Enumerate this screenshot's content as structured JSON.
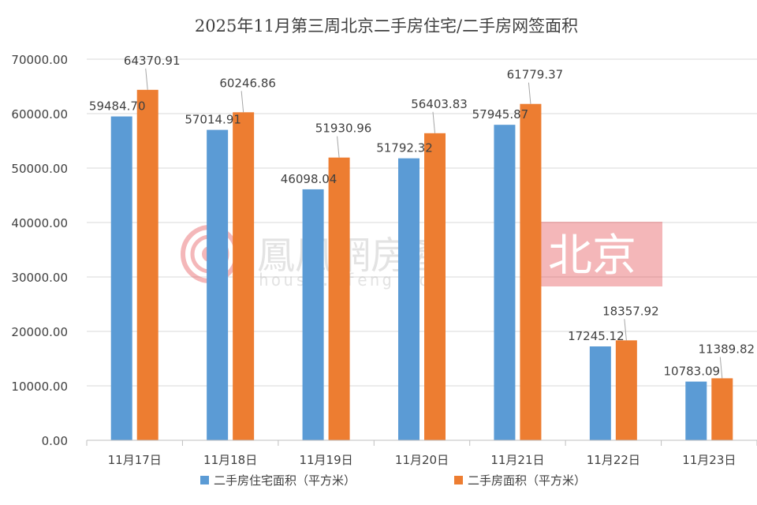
{
  "chart_data": {
    "type": "bar",
    "title": "2025年11月第三周北京二手房住宅/二手房网签面积",
    "categories": [
      "11月17日",
      "11月18日",
      "11月19日",
      "11月20日",
      "11月21日",
      "11月22日",
      "11月23日"
    ],
    "series": [
      {
        "name": "二手房住宅面积（平方米）",
        "color": "#5B9BD5",
        "values": [
          59484.7,
          57014.91,
          46098.04,
          51792.32,
          57945.87,
          17245.12,
          10783.09
        ],
        "labels": [
          "59484.70",
          "57014.91",
          "46098.04",
          "51792.32",
          "57945.87",
          "17245.12",
          "10783.09"
        ]
      },
      {
        "name": "二手房面积（平方米）",
        "color": "#ED7D31",
        "values": [
          64370.91,
          60246.86,
          51930.96,
          56403.83,
          61779.37,
          18357.92,
          11389.82
        ],
        "labels": [
          "64370.91",
          "60246.86",
          "51930.96",
          "56403.83",
          "61779.37",
          "18357.92",
          "11389.82"
        ]
      }
    ],
    "ylim": [
      0,
      70000
    ],
    "yticks": [
      "0.00",
      "10000.00",
      "20000.00",
      "30000.00",
      "40000.00",
      "50000.00",
      "60000.00",
      "70000.00"
    ],
    "grid": true,
    "legend_position": "bottom"
  },
  "watermark": {
    "brand": "鳳凰網房產",
    "url": "house.ifeng.com",
    "city": "北京",
    "accent": "#E0353A"
  }
}
